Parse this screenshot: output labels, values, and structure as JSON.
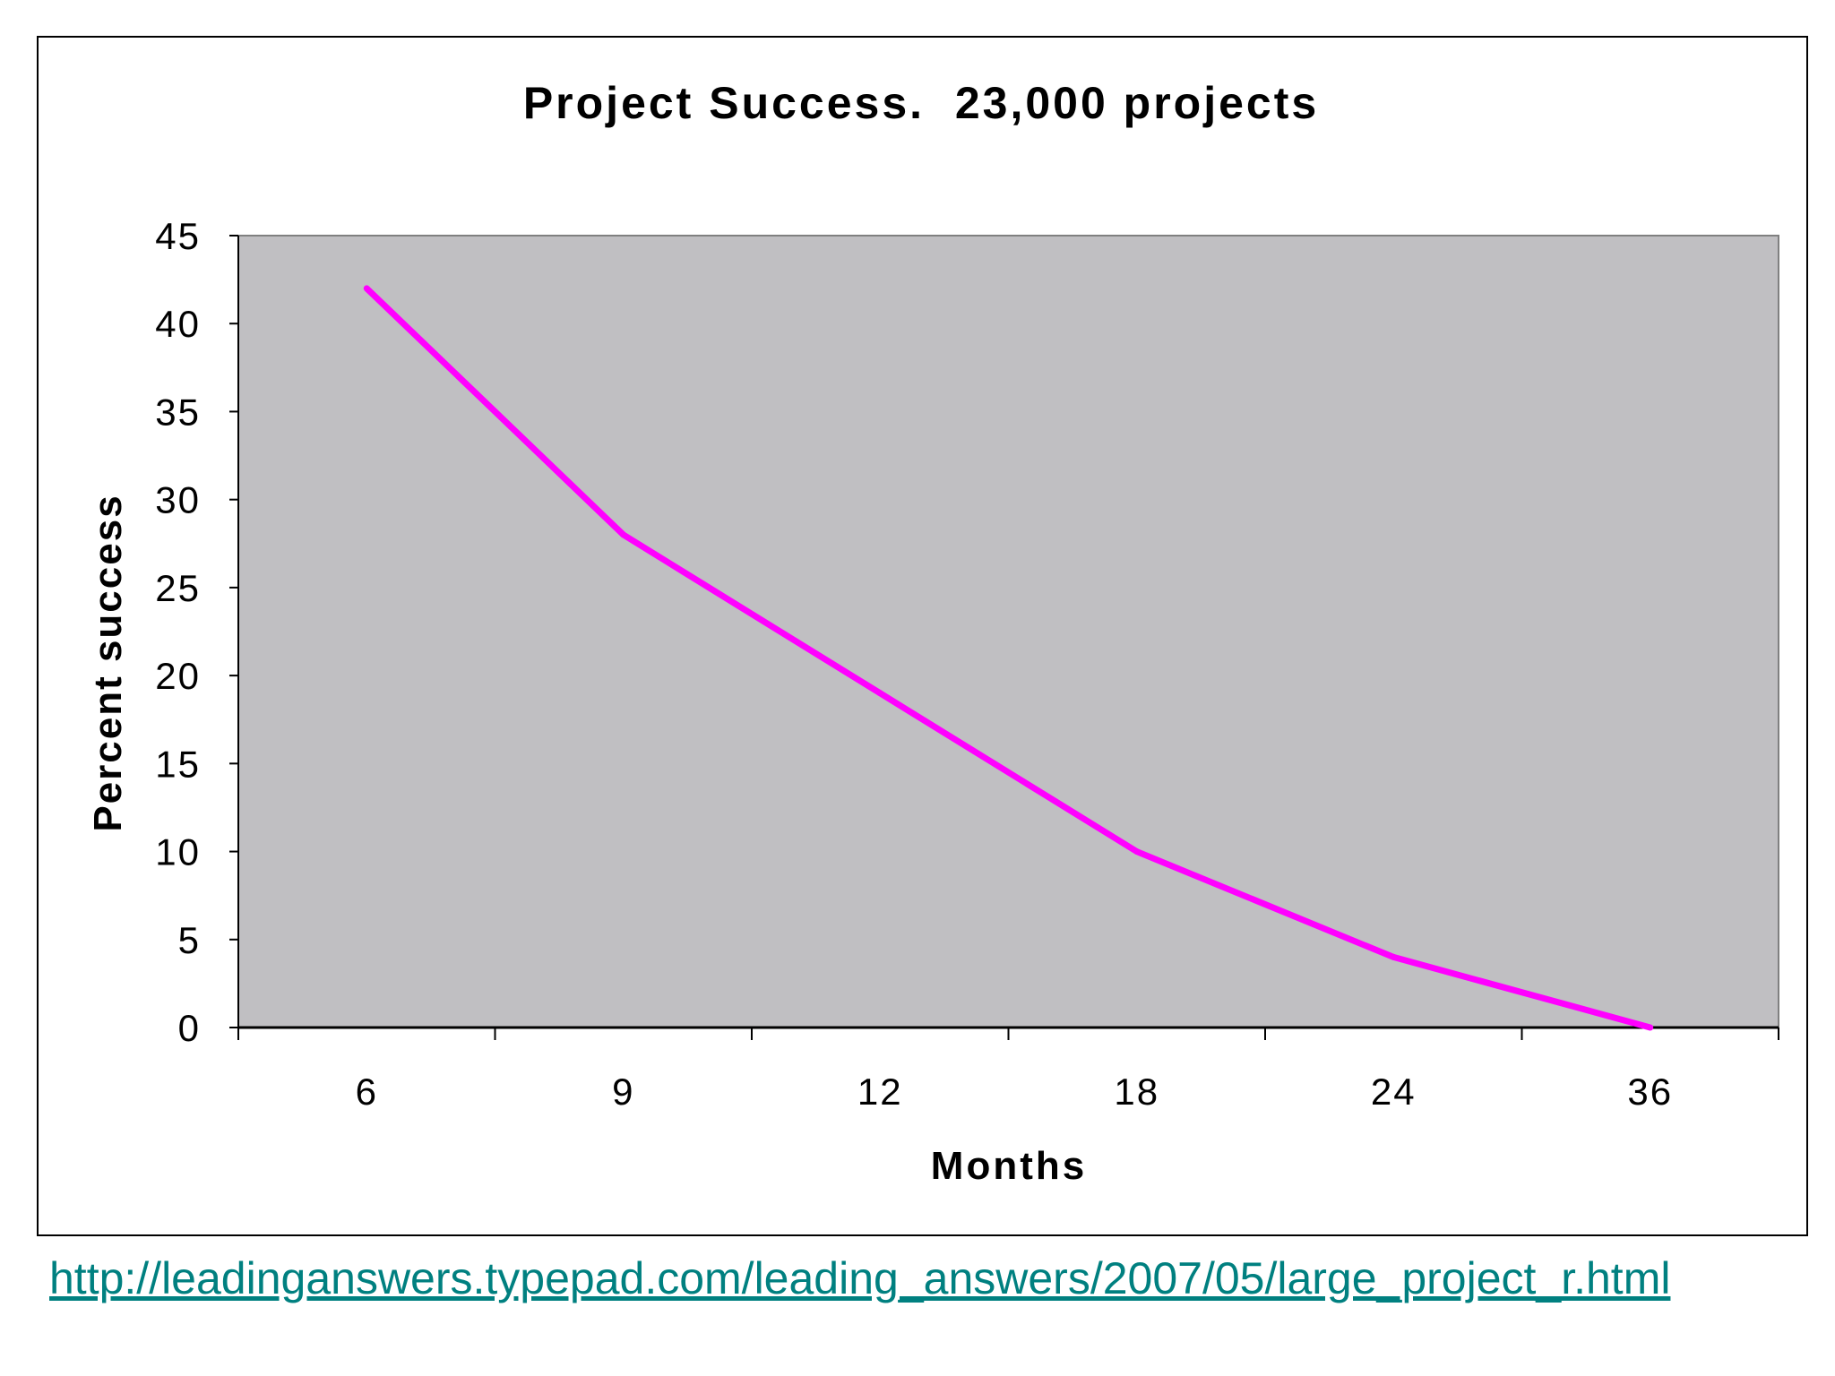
{
  "chart_data": {
    "type": "line",
    "title": "Project Success.  23,000 projects",
    "xlabel": "Months",
    "ylabel": "Percent success",
    "categories": [
      "6",
      "9",
      "12",
      "18",
      "24",
      "36"
    ],
    "series": [
      {
        "values": [
          42,
          28,
          19,
          10,
          4,
          0
        ]
      }
    ],
    "ylim": [
      0,
      45
    ],
    "yticks": [
      "0",
      "5",
      "10",
      "15",
      "20",
      "25",
      "30",
      "35",
      "40",
      "45"
    ],
    "grid": false,
    "legend": "none",
    "colors": {
      "line": "#ff00ff",
      "plot_bg": "#c0bfc2",
      "axis": "#000000"
    }
  },
  "source_link": "http://leadinganswers.typepad.com/leading_answers/2007/05/large_project_r.html",
  "colors": {
    "link": "#008080"
  }
}
